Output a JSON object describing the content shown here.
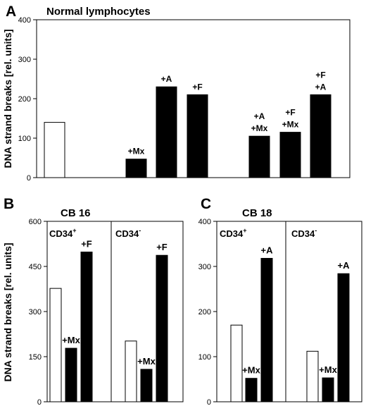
{
  "chart_data": [
    {
      "panel": "A",
      "type": "bar",
      "title": "Normal lymphocytes",
      "ylabel": "DNA strand breaks [rel. units]",
      "ylim": [
        0,
        400
      ],
      "yticks": [
        0,
        100,
        200,
        300,
        400
      ],
      "bars": [
        {
          "value": 140,
          "label": [],
          "fill": "white"
        },
        {
          "value": 47,
          "label": [
            "+Mx"
          ],
          "fill": "black"
        },
        {
          "value": 230,
          "label": [
            "+A"
          ],
          "fill": "black"
        },
        {
          "value": 210,
          "label": [
            "+F"
          ],
          "fill": "black"
        },
        {
          "value": 105,
          "label": [
            "+A",
            "+Mx"
          ],
          "fill": "black"
        },
        {
          "value": 115,
          "label": [
            "+F",
            "+Mx"
          ],
          "fill": "black"
        },
        {
          "value": 210,
          "label": [
            "+F",
            "+A"
          ],
          "fill": "black"
        }
      ]
    },
    {
      "panel": "B",
      "type": "bar",
      "title": "CB 16",
      "ylabel": "DNA strand breaks [rel. units]",
      "ylim": [
        0,
        600
      ],
      "yticks": [
        0,
        150,
        300,
        450,
        600
      ],
      "subpanels": [
        {
          "name": "CD34",
          "sup": "+",
          "bars": [
            {
              "value": 377,
              "label": "",
              "fill": "white"
            },
            {
              "value": 178,
              "label": "+Mx",
              "fill": "black"
            },
            {
              "value": 498,
              "label": "+F",
              "fill": "black"
            }
          ]
        },
        {
          "name": "CD34",
          "sup": "-",
          "bars": [
            {
              "value": 202,
              "label": "",
              "fill": "white"
            },
            {
              "value": 108,
              "label": "+Mx",
              "fill": "black"
            },
            {
              "value": 487,
              "label": "+F",
              "fill": "black"
            }
          ]
        }
      ]
    },
    {
      "panel": "C",
      "type": "bar",
      "title": "CB 18",
      "ylim": [
        0,
        400
      ],
      "yticks": [
        0,
        100,
        200,
        300,
        400
      ],
      "subpanels": [
        {
          "name": "CD34",
          "sup": "+",
          "bars": [
            {
              "value": 170,
              "label": "",
              "fill": "white"
            },
            {
              "value": 52,
              "label": "+Mx",
              "fill": "black"
            },
            {
              "value": 318,
              "label": "+A",
              "fill": "black"
            }
          ]
        },
        {
          "name": "CD34",
          "sup": "-",
          "bars": [
            {
              "value": 112,
              "label": "",
              "fill": "white"
            },
            {
              "value": 53,
              "label": "+Mx",
              "fill": "black"
            },
            {
              "value": 284,
              "label": "+A",
              "fill": "black"
            }
          ]
        }
      ]
    }
  ]
}
